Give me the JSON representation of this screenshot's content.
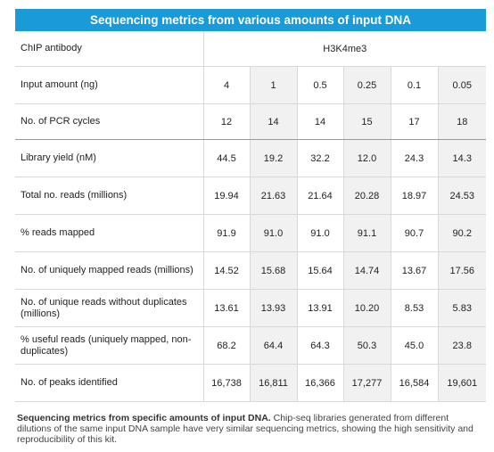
{
  "title": "Sequencing metrics from various amounts of input DNA",
  "antibody_label": "ChIP antibody",
  "antibody_value": "H3K4me3",
  "rows": [
    {
      "label": "Input amount (ng)",
      "values": [
        "4",
        "1",
        "0.5",
        "0.25",
        "0.1",
        "0.05"
      ]
    },
    {
      "label": "No. of PCR cycles",
      "values": [
        "12",
        "14",
        "14",
        "15",
        "17",
        "18"
      ]
    },
    {
      "label": "Library yield (nM)",
      "values": [
        "44.5",
        "19.2",
        "32.2",
        "12.0",
        "24.3",
        "14.3"
      ]
    },
    {
      "label": "Total no. reads (millions)",
      "values": [
        "19.94",
        "21.63",
        "21.64",
        "20.28",
        "18.97",
        "24.53"
      ]
    },
    {
      "label": "% reads mapped",
      "values": [
        "91.9",
        "91.0",
        "91.0",
        "91.1",
        "90.7",
        "90.2"
      ]
    },
    {
      "label": "No. of uniquely mapped reads (millions)",
      "values": [
        "14.52",
        "15.68",
        "15.64",
        "14.74",
        "13.67",
        "17.56"
      ]
    },
    {
      "label": "No. of unique reads without duplicates (millions)",
      "values": [
        "13.61",
        "13.93",
        "13.91",
        "10.20",
        "8.53",
        "5.83"
      ]
    },
    {
      "label": "% useful reads (uniquely mapped, non-duplicates)",
      "values": [
        "68.2",
        "64.4",
        "64.3",
        "50.3",
        "45.0",
        "23.8"
      ]
    },
    {
      "label": "No. of peaks identified",
      "values": [
        "16,738",
        "16,811",
        "16,366",
        "17,277",
        "16,584",
        "19,601"
      ]
    }
  ],
  "caption": {
    "bold": "Sequencing metrics from specific amounts of input DNA.",
    "text": " Chip-seq libraries generated from different dilutions of the same input DNA sample have very similar sequencing metrics, showing the high sensitivity and reproducibility of this kit."
  }
}
